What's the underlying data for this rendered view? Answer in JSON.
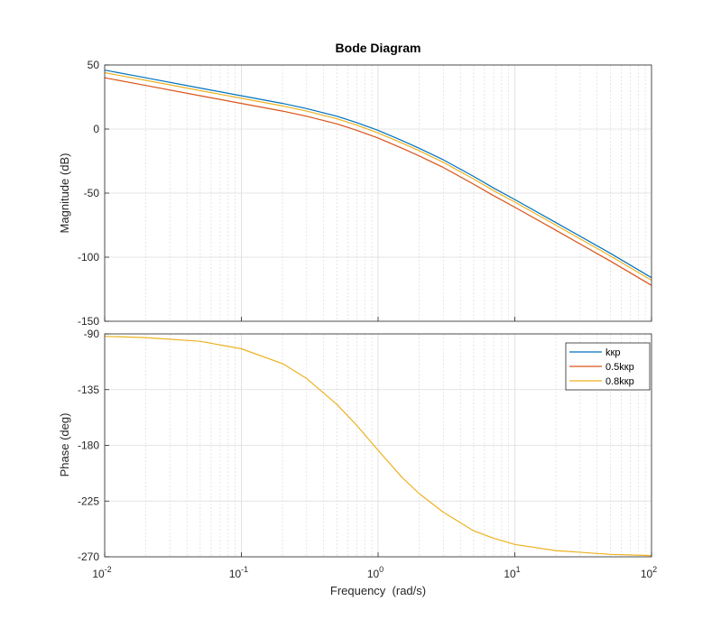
{
  "chart_data": {
    "type": "line",
    "title": "Bode Diagram",
    "xlabel": "Frequency  (rad/s)",
    "x_scale": "log",
    "xlim": [
      0.01,
      100
    ],
    "grid": true,
    "x_ticks": [
      {
        "base": "10",
        "exp": "-2"
      },
      {
        "base": "10",
        "exp": "-1"
      },
      {
        "base": "10",
        "exp": "0"
      },
      {
        "base": "10",
        "exp": "1"
      },
      {
        "base": "10",
        "exp": "2"
      }
    ],
    "colors": {
      "kkp": "#0072BD",
      "half": "#D95319",
      "eight": "#EDB120",
      "axis": "#262626",
      "grid": "#dcdcdc"
    },
    "legend": {
      "placement": "top-right",
      "entries": [
        "kкp",
        "0.5kкp",
        "0.8kкp"
      ]
    },
    "magnitude": {
      "ylabel": "Magnitude (dB)",
      "ylim": [
        -150,
        50
      ],
      "y_ticks": [
        "50",
        "0",
        "-50",
        "-100",
        "-150"
      ],
      "series": [
        {
          "name": "kкp",
          "color": "#0072BD",
          "points": [
            [
              0.01,
              46
            ],
            [
              0.02,
              40
            ],
            [
              0.05,
              32
            ],
            [
              0.1,
              26
            ],
            [
              0.2,
              20
            ],
            [
              0.3,
              16
            ],
            [
              0.5,
              10
            ],
            [
              0.7,
              5
            ],
            [
              1,
              -1
            ],
            [
              1.5,
              -9
            ],
            [
              2,
              -15
            ],
            [
              3,
              -24
            ],
            [
              5,
              -37
            ],
            [
              7,
              -46
            ],
            [
              10,
              -55
            ],
            [
              20,
              -73
            ],
            [
              50,
              -97
            ],
            [
              100,
              -116
            ]
          ]
        },
        {
          "name": "0.5kкp",
          "color": "#D95319",
          "points": [
            [
              0.01,
              40
            ],
            [
              0.02,
              34
            ],
            [
              0.05,
              26
            ],
            [
              0.1,
              20
            ],
            [
              0.2,
              14
            ],
            [
              0.3,
              10
            ],
            [
              0.5,
              4
            ],
            [
              0.7,
              -1
            ],
            [
              1,
              -7
            ],
            [
              1.5,
              -15
            ],
            [
              2,
              -21
            ],
            [
              3,
              -30
            ],
            [
              5,
              -43
            ],
            [
              7,
              -52
            ],
            [
              10,
              -61
            ],
            [
              20,
              -79
            ],
            [
              50,
              -103
            ],
            [
              100,
              -122
            ]
          ]
        },
        {
          "name": "0.8kкp",
          "color": "#EDB120",
          "points": [
            [
              0.01,
              44
            ],
            [
              0.02,
              38
            ],
            [
              0.05,
              30
            ],
            [
              0.1,
              24
            ],
            [
              0.2,
              18
            ],
            [
              0.3,
              14
            ],
            [
              0.5,
              8
            ],
            [
              0.7,
              3
            ],
            [
              1,
              -3
            ],
            [
              1.5,
              -11
            ],
            [
              2,
              -17
            ],
            [
              3,
              -26
            ],
            [
              5,
              -39
            ],
            [
              7,
              -48
            ],
            [
              10,
              -57
            ],
            [
              20,
              -75
            ],
            [
              50,
              -99
            ],
            [
              100,
              -118
            ]
          ]
        }
      ]
    },
    "phase": {
      "ylabel": "Phase (deg)",
      "ylim": [
        -270,
        -90
      ],
      "y_ticks": [
        "-90",
        "-135",
        "-180",
        "-225",
        "-270"
      ],
      "series": [
        {
          "name": "0.8kкp",
          "color": "#EDB120",
          "points": [
            [
              0.01,
              -92
            ],
            [
              0.02,
              -93
            ],
            [
              0.05,
              -96
            ],
            [
              0.1,
              -102
            ],
            [
              0.2,
              -114
            ],
            [
              0.3,
              -126
            ],
            [
              0.5,
              -147
            ],
            [
              0.7,
              -164
            ],
            [
              1,
              -184
            ],
            [
              1.5,
              -206
            ],
            [
              2,
              -219
            ],
            [
              3,
              -234
            ],
            [
              5,
              -249
            ],
            [
              7,
              -255
            ],
            [
              10,
              -260
            ],
            [
              20,
              -265
            ],
            [
              50,
              -268
            ],
            [
              100,
              -269
            ]
          ]
        }
      ]
    }
  }
}
